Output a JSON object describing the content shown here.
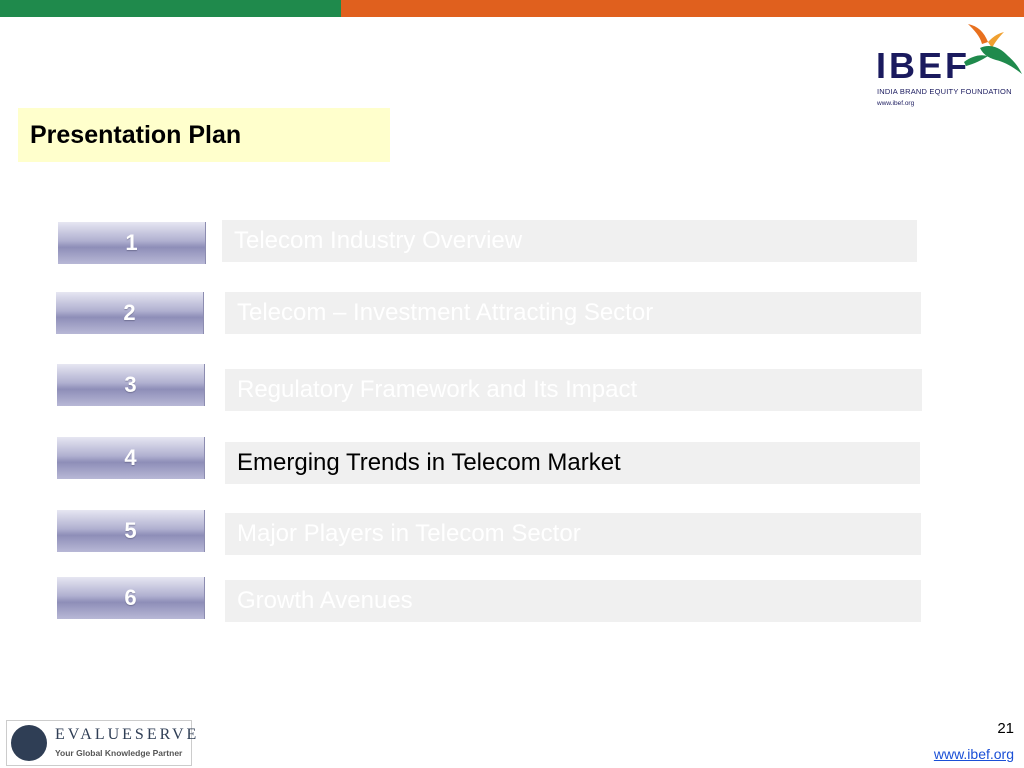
{
  "header": {
    "colors": {
      "green": "#1f8a4c",
      "orange": "#e0601e"
    }
  },
  "ibef_logo": {
    "word": "IBEF",
    "full_name": "INDIA BRAND EQUITY FOUNDATION",
    "url": "www.ibef.org",
    "icon": "bird-icon"
  },
  "slide": {
    "title": "Presentation Plan",
    "items": [
      {
        "number": "1",
        "label": "Telecom Industry Overview",
        "active": false
      },
      {
        "number": "2",
        "label": "Telecom – Investment Attracting Sector",
        "active": false
      },
      {
        "number": "3",
        "label": "Regulatory Framework and Its Impact",
        "active": false
      },
      {
        "number": "4",
        "label": "Emerging Trends in Telecom Market",
        "active": true
      },
      {
        "number": "5",
        "label": "Major Players in Telecom Sector",
        "active": false
      },
      {
        "number": "6",
        "label": "Growth Avenues",
        "active": false
      }
    ]
  },
  "footer": {
    "partner_logo": {
      "name": "EVALUESERVE",
      "tagline": "Your Global Knowledge Partner"
    },
    "page_number": "21",
    "link": "www.ibef.org "
  }
}
